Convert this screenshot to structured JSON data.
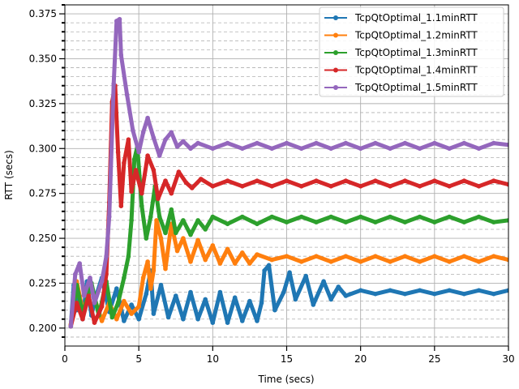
{
  "chart_data": {
    "type": "line",
    "title": "",
    "xlabel": "Time (secs)",
    "ylabel": "RTT (secs)",
    "xlim": [
      0,
      30
    ],
    "ylim": [
      0.19,
      0.38
    ],
    "x_ticks": [
      0,
      5,
      10,
      15,
      20,
      25,
      30
    ],
    "y_ticks": [
      0.2,
      0.225,
      0.25,
      0.275,
      0.3,
      0.325,
      0.35,
      0.375
    ],
    "y_minor_step": 0.005,
    "grid": "major solid, minor dashed (y)",
    "legend_position": "top-right",
    "series": [
      {
        "name": "TcpQtOptimal_1.1minRTT",
        "color": "#1f77b4",
        "points": [
          [
            0.4,
            0.201
          ],
          [
            0.6,
            0.224
          ],
          [
            0.8,
            0.21
          ],
          [
            1,
            0.218
          ],
          [
            1.2,
            0.205
          ],
          [
            1.5,
            0.226
          ],
          [
            1.8,
            0.207
          ],
          [
            2,
            0.215
          ],
          [
            2.5,
            0.228
          ],
          [
            3,
            0.209
          ],
          [
            3.5,
            0.222
          ],
          [
            4,
            0.204
          ],
          [
            4.5,
            0.213
          ],
          [
            5,
            0.205
          ],
          [
            5.5,
            0.219
          ],
          [
            5.8,
            0.232
          ],
          [
            6,
            0.208
          ],
          [
            6.5,
            0.224
          ],
          [
            7,
            0.206
          ],
          [
            7.5,
            0.218
          ],
          [
            8,
            0.205
          ],
          [
            8.5,
            0.22
          ],
          [
            9,
            0.205
          ],
          [
            9.5,
            0.216
          ],
          [
            10,
            0.203
          ],
          [
            10.5,
            0.22
          ],
          [
            11,
            0.203
          ],
          [
            11.5,
            0.217
          ],
          [
            12,
            0.204
          ],
          [
            12.5,
            0.215
          ],
          [
            13,
            0.204
          ],
          [
            13.3,
            0.214
          ],
          [
            13.5,
            0.232
          ],
          [
            13.8,
            0.235
          ],
          [
            14.2,
            0.21
          ],
          [
            14.8,
            0.22
          ],
          [
            15.2,
            0.231
          ],
          [
            15.6,
            0.216
          ],
          [
            16.3,
            0.229
          ],
          [
            16.8,
            0.213
          ],
          [
            17.5,
            0.226
          ],
          [
            18,
            0.216
          ],
          [
            18.5,
            0.223
          ],
          [
            19,
            0.218
          ],
          [
            20,
            0.221
          ],
          [
            21,
            0.219
          ],
          [
            22,
            0.221
          ],
          [
            23,
            0.219
          ],
          [
            24,
            0.221
          ],
          [
            25,
            0.219
          ],
          [
            26,
            0.221
          ],
          [
            27,
            0.219
          ],
          [
            28,
            0.221
          ],
          [
            29,
            0.219
          ],
          [
            30,
            0.221
          ]
        ]
      },
      {
        "name": "TcpQtOptimal_1.2minRTT",
        "color": "#ff7f0e",
        "points": [
          [
            0.4,
            0.202
          ],
          [
            0.8,
            0.226
          ],
          [
            1.2,
            0.21
          ],
          [
            1.8,
            0.222
          ],
          [
            2.5,
            0.204
          ],
          [
            3,
            0.214
          ],
          [
            3.5,
            0.205
          ],
          [
            4,
            0.215
          ],
          [
            4.5,
            0.208
          ],
          [
            5,
            0.212
          ],
          [
            5.3,
            0.228
          ],
          [
            5.6,
            0.237
          ],
          [
            5.8,
            0.222
          ],
          [
            6,
            0.232
          ],
          [
            6.2,
            0.26
          ],
          [
            6.5,
            0.25
          ],
          [
            6.8,
            0.233
          ],
          [
            7.2,
            0.258
          ],
          [
            7.6,
            0.243
          ],
          [
            8,
            0.25
          ],
          [
            8.5,
            0.237
          ],
          [
            9,
            0.249
          ],
          [
            9.5,
            0.238
          ],
          [
            10,
            0.246
          ],
          [
            10.5,
            0.236
          ],
          [
            11,
            0.244
          ],
          [
            11.5,
            0.236
          ],
          [
            12,
            0.242
          ],
          [
            12.5,
            0.236
          ],
          [
            13,
            0.241
          ],
          [
            14,
            0.238
          ],
          [
            15,
            0.24
          ],
          [
            16,
            0.237
          ],
          [
            17,
            0.24
          ],
          [
            18,
            0.237
          ],
          [
            19,
            0.24
          ],
          [
            20,
            0.237
          ],
          [
            21,
            0.24
          ],
          [
            22,
            0.237
          ],
          [
            23,
            0.24
          ],
          [
            24,
            0.237
          ],
          [
            25,
            0.24
          ],
          [
            26,
            0.237
          ],
          [
            27,
            0.24
          ],
          [
            28,
            0.237
          ],
          [
            29,
            0.24
          ],
          [
            30,
            0.238
          ]
        ]
      },
      {
        "name": "TcpQtOptimal_1.3minRTT",
        "color": "#2ca02c",
        "points": [
          [
            0.4,
            0.201
          ],
          [
            0.8,
            0.224
          ],
          [
            1.2,
            0.208
          ],
          [
            1.8,
            0.225
          ],
          [
            2.3,
            0.207
          ],
          [
            2.8,
            0.226
          ],
          [
            3.2,
            0.206
          ],
          [
            3.6,
            0.214
          ],
          [
            4,
            0.228
          ],
          [
            4.3,
            0.24
          ],
          [
            4.5,
            0.26
          ],
          [
            4.7,
            0.294
          ],
          [
            4.9,
            0.301
          ],
          [
            5.2,
            0.268
          ],
          [
            5.5,
            0.25
          ],
          [
            5.8,
            0.262
          ],
          [
            6.1,
            0.279
          ],
          [
            6.4,
            0.262
          ],
          [
            6.8,
            0.253
          ],
          [
            7.2,
            0.266
          ],
          [
            7.5,
            0.253
          ],
          [
            8,
            0.26
          ],
          [
            8.5,
            0.252
          ],
          [
            9,
            0.26
          ],
          [
            9.5,
            0.255
          ],
          [
            10,
            0.262
          ],
          [
            11,
            0.258
          ],
          [
            12,
            0.262
          ],
          [
            13,
            0.258
          ],
          [
            14,
            0.262
          ],
          [
            15,
            0.259
          ],
          [
            16,
            0.262
          ],
          [
            17,
            0.259
          ],
          [
            18,
            0.262
          ],
          [
            19,
            0.259
          ],
          [
            20,
            0.262
          ],
          [
            21,
            0.259
          ],
          [
            22,
            0.262
          ],
          [
            23,
            0.259
          ],
          [
            24,
            0.262
          ],
          [
            25,
            0.259
          ],
          [
            26,
            0.262
          ],
          [
            27,
            0.259
          ],
          [
            28,
            0.262
          ],
          [
            29,
            0.259
          ],
          [
            30,
            0.26
          ]
        ]
      },
      {
        "name": "TcpQtOptimal_1.4minRTT",
        "color": "#d62728",
        "points": [
          [
            0.4,
            0.201
          ],
          [
            0.8,
            0.214
          ],
          [
            1.2,
            0.205
          ],
          [
            1.6,
            0.218
          ],
          [
            2,
            0.203
          ],
          [
            2.5,
            0.212
          ],
          [
            2.8,
            0.23
          ],
          [
            3,
            0.27
          ],
          [
            3.2,
            0.326
          ],
          [
            3.4,
            0.335
          ],
          [
            3.6,
            0.298
          ],
          [
            3.8,
            0.268
          ],
          [
            4,
            0.292
          ],
          [
            4.3,
            0.305
          ],
          [
            4.5,
            0.276
          ],
          [
            4.8,
            0.288
          ],
          [
            5.2,
            0.275
          ],
          [
            5.6,
            0.296
          ],
          [
            6,
            0.288
          ],
          [
            6.3,
            0.272
          ],
          [
            6.8,
            0.282
          ],
          [
            7.2,
            0.275
          ],
          [
            7.7,
            0.287
          ],
          [
            8.2,
            0.281
          ],
          [
            8.6,
            0.278
          ],
          [
            9.2,
            0.283
          ],
          [
            10,
            0.279
          ],
          [
            11,
            0.282
          ],
          [
            12,
            0.279
          ],
          [
            13,
            0.282
          ],
          [
            14,
            0.279
          ],
          [
            15,
            0.282
          ],
          [
            16,
            0.279
          ],
          [
            17,
            0.282
          ],
          [
            18,
            0.279
          ],
          [
            19,
            0.282
          ],
          [
            20,
            0.279
          ],
          [
            21,
            0.282
          ],
          [
            22,
            0.279
          ],
          [
            23,
            0.282
          ],
          [
            24,
            0.279
          ],
          [
            25,
            0.282
          ],
          [
            26,
            0.279
          ],
          [
            27,
            0.282
          ],
          [
            28,
            0.279
          ],
          [
            29,
            0.282
          ],
          [
            30,
            0.28
          ]
        ]
      },
      {
        "name": "TcpQtOptimal_1.5minRTT",
        "color": "#9467bd",
        "points": [
          [
            0.4,
            0.201
          ],
          [
            0.7,
            0.23
          ],
          [
            1,
            0.236
          ],
          [
            1.3,
            0.218
          ],
          [
            1.7,
            0.228
          ],
          [
            2,
            0.214
          ],
          [
            2.5,
            0.226
          ],
          [
            2.8,
            0.24
          ],
          [
            3,
            0.262
          ],
          [
            3.3,
            0.336
          ],
          [
            3.5,
            0.371
          ],
          [
            3.7,
            0.372
          ],
          [
            3.8,
            0.352
          ],
          [
            4.2,
            0.33
          ],
          [
            4.6,
            0.31
          ],
          [
            5,
            0.298
          ],
          [
            5.3,
            0.309
          ],
          [
            5.6,
            0.317
          ],
          [
            6,
            0.306
          ],
          [
            6.4,
            0.296
          ],
          [
            6.8,
            0.305
          ],
          [
            7.2,
            0.309
          ],
          [
            7.6,
            0.301
          ],
          [
            8,
            0.304
          ],
          [
            8.5,
            0.3
          ],
          [
            9,
            0.303
          ],
          [
            10,
            0.3
          ],
          [
            11,
            0.303
          ],
          [
            12,
            0.3
          ],
          [
            13,
            0.303
          ],
          [
            14,
            0.3
          ],
          [
            15,
            0.303
          ],
          [
            16,
            0.3
          ],
          [
            17,
            0.303
          ],
          [
            18,
            0.3
          ],
          [
            19,
            0.303
          ],
          [
            20,
            0.3
          ],
          [
            21,
            0.303
          ],
          [
            22,
            0.3
          ],
          [
            23,
            0.303
          ],
          [
            24,
            0.3
          ],
          [
            25,
            0.303
          ],
          [
            26,
            0.3
          ],
          [
            27,
            0.303
          ],
          [
            28,
            0.3
          ],
          [
            29,
            0.303
          ],
          [
            30,
            0.302
          ]
        ]
      }
    ]
  }
}
